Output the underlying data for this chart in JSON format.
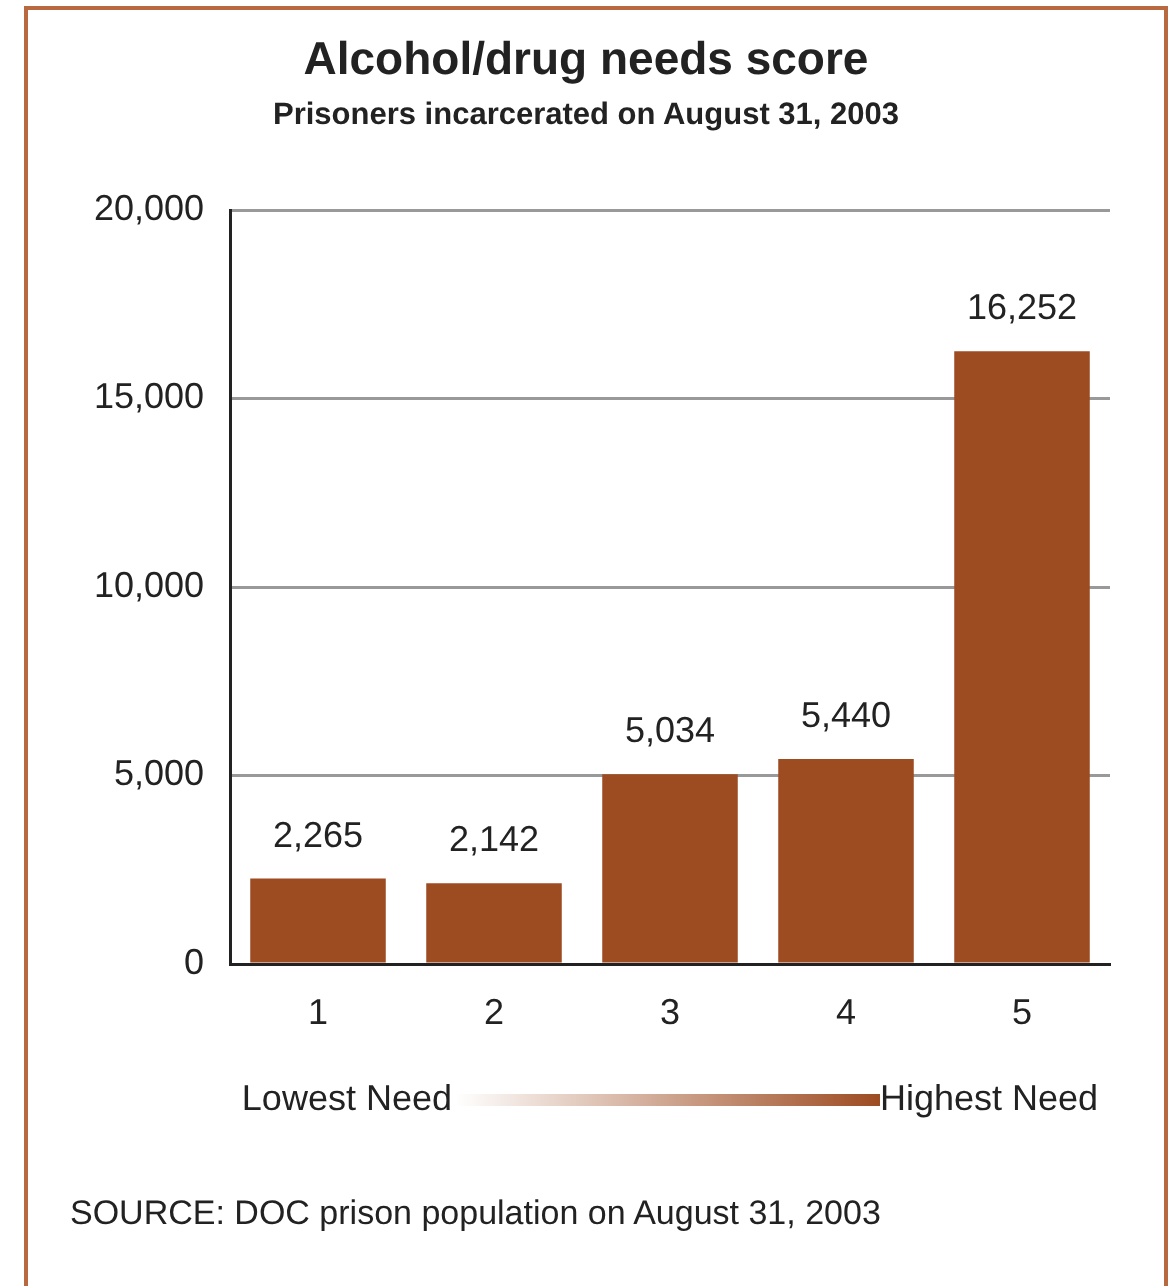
{
  "chart_data": {
    "type": "bar",
    "title": "Alcohol/drug needs score",
    "subtitle": "Prisoners incarcerated on August 31, 2003",
    "categories": [
      "1",
      "2",
      "3",
      "4",
      "5"
    ],
    "values": [
      2265,
      2142,
      5034,
      5440,
      16252
    ],
    "color": "#9d4b21",
    "value_labels": [
      "2,265",
      "2,142",
      "5,034",
      "5,440",
      "16,252"
    ],
    "ylim": [
      0,
      20000
    ],
    "yticks": [
      0,
      {
        "value": 5000,
        "label": "5,000"
      },
      {
        "value": 10000,
        "label": "10,000"
      },
      {
        "value": 15000,
        "label": "15,000"
      },
      {
        "value": 20000,
        "label": "20,000"
      }
    ],
    "grid": "y",
    "annotations": [
      "Lowest Need",
      "Highest Need",
      "SOURCE: DOC prison population on August 31, 2003"
    ]
  }
}
